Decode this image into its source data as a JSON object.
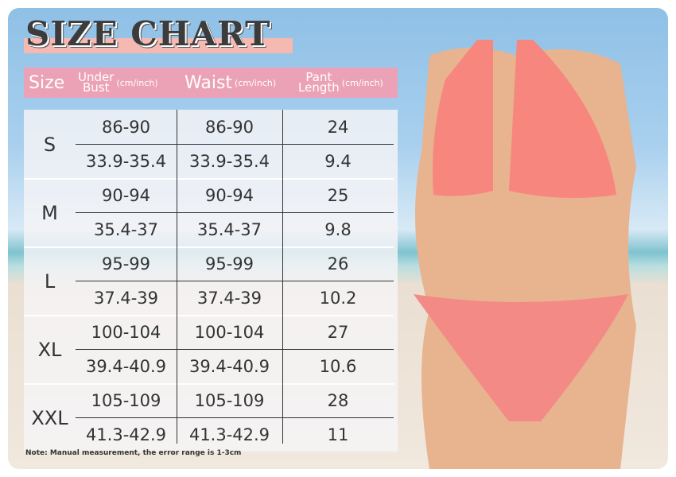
{
  "title": "SIZE CHART",
  "headers": {
    "size": "Size",
    "under_bust_1": "Under",
    "under_bust_2": "Bust",
    "unit": "(cm/inch)",
    "waist": "Waist",
    "pant_1": "Pant",
    "pant_2": "Length"
  },
  "rows": [
    {
      "size": "S",
      "cm": [
        "86-90",
        "86-90",
        "24"
      ],
      "inch": [
        "33.9-35.4",
        "33.9-35.4",
        "9.4"
      ]
    },
    {
      "size": "M",
      "cm": [
        "90-94",
        "90-94",
        "25"
      ],
      "inch": [
        "35.4-37",
        "35.4-37",
        "9.8"
      ]
    },
    {
      "size": "L",
      "cm": [
        "95-99",
        "95-99",
        "26"
      ],
      "inch": [
        "37.4-39",
        "37.4-39",
        "10.2"
      ]
    },
    {
      "size": "XL",
      "cm": [
        "100-104",
        "100-104",
        "27"
      ],
      "inch": [
        "39.4-40.9",
        "39.4-40.9",
        "10.6"
      ]
    },
    {
      "size": "XXL",
      "cm": [
        "105-109",
        "105-109",
        "28"
      ],
      "inch": [
        "41.3-42.9",
        "41.3-42.9",
        "11"
      ]
    }
  ],
  "note": "Note: Manual measurement, the error range is 1-3cm",
  "colors": {
    "header": "#eba2b6",
    "title_band": "#f6b9b2",
    "bikini": "#f7867f"
  }
}
